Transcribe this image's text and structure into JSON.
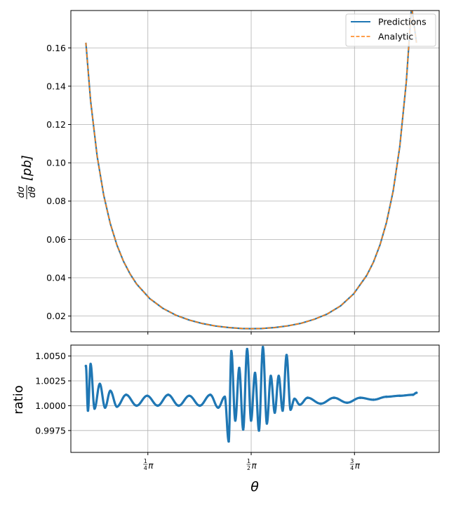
{
  "chart_data": [
    {
      "type": "line",
      "xlabel": "",
      "ylabel": "dσ/dθ [pb]",
      "ylabel_parts": {
        "num": "dσ",
        "den": "dθ",
        "unit": "[pb]"
      },
      "x_unit": "radians",
      "xlim": [
        0.2,
        3.0
      ],
      "ylim": [
        0.0118,
        0.1795
      ],
      "yticks": [
        0.02,
        0.04,
        0.06,
        0.08,
        0.1,
        0.12,
        0.14,
        0.16
      ],
      "ytick_labels": [
        "0.02",
        "0.04",
        "0.06",
        "0.08",
        "0.10",
        "0.12",
        "0.14",
        "0.16"
      ],
      "grid": true,
      "legend": {
        "position": "top-right"
      },
      "series": [
        {
          "name": "Predictions",
          "color": "#1f77b4",
          "style": "solid",
          "x": [
            0.3142,
            0.35,
            0.4,
            0.45,
            0.5,
            0.55,
            0.6,
            0.65,
            0.7,
            0.8,
            0.9,
            1.0,
            1.1,
            1.2,
            1.3,
            1.4,
            1.5,
            1.5708,
            1.65,
            1.75,
            1.85,
            1.95,
            2.05,
            2.15,
            2.25,
            2.35,
            2.45,
            2.5,
            2.55,
            2.6,
            2.65,
            2.7,
            2.75,
            2.79,
            2.8274
          ],
          "y": [
            0.1627,
            0.1324,
            0.1034,
            0.083,
            0.0682,
            0.0571,
            0.0486,
            0.042,
            0.0367,
            0.0291,
            0.024,
            0.0204,
            0.0179,
            0.0161,
            0.0148,
            0.014,
            0.0135,
            0.0134,
            0.0135,
            0.014,
            0.0149,
            0.0162,
            0.0183,
            0.0211,
            0.0253,
            0.0316,
            0.0413,
            0.0481,
            0.0571,
            0.069,
            0.0852,
            0.1082,
            0.1422,
            0.182,
            0.1627
          ]
        },
        {
          "name": "Analytic",
          "color": "#ff7f0e",
          "style": "dashed",
          "x": [
            0.3142,
            0.35,
            0.4,
            0.45,
            0.5,
            0.55,
            0.6,
            0.65,
            0.7,
            0.8,
            0.9,
            1.0,
            1.1,
            1.2,
            1.3,
            1.4,
            1.5,
            1.5708,
            1.65,
            1.75,
            1.85,
            1.95,
            2.05,
            2.15,
            2.25,
            2.35,
            2.45,
            2.5,
            2.55,
            2.6,
            2.65,
            2.7,
            2.75,
            2.79,
            2.8274
          ],
          "y": [
            0.1627,
            0.1324,
            0.1034,
            0.083,
            0.0682,
            0.0571,
            0.0486,
            0.042,
            0.0367,
            0.0291,
            0.024,
            0.0204,
            0.0179,
            0.0161,
            0.0148,
            0.014,
            0.0135,
            0.0134,
            0.0135,
            0.014,
            0.0149,
            0.0162,
            0.0183,
            0.0211,
            0.0253,
            0.0316,
            0.0413,
            0.0481,
            0.0571,
            0.069,
            0.0852,
            0.1082,
            0.1422,
            0.182,
            0.1627
          ]
        }
      ]
    },
    {
      "type": "scatter",
      "xlabel": "θ",
      "ylabel": "ratio",
      "x_unit": "radians",
      "xlim": [
        0.2,
        3.0
      ],
      "ylim": [
        0.9953,
        1.0061
      ],
      "xticks": [
        0.7854,
        1.5708,
        2.3562
      ],
      "xtick_labels": [
        {
          "num": "1",
          "den": "4",
          "sym": "π"
        },
        {
          "num": "1",
          "den": "2",
          "sym": "π"
        },
        {
          "num": "3",
          "den": "4",
          "sym": "π"
        }
      ],
      "yticks": [
        0.9975,
        1.0,
        1.0025,
        1.005
      ],
      "ytick_labels": [
        "0.9975",
        "1.0000",
        "1.0025",
        "1.0050"
      ],
      "grid": true,
      "color": "#1f77b4",
      "series": [
        {
          "x": [
            0.3142,
            0.33,
            0.35,
            0.38,
            0.42,
            0.46,
            0.5,
            0.55,
            0.62,
            0.7,
            0.78,
            0.86,
            0.94,
            1.02,
            1.1,
            1.18,
            1.26,
            1.32,
            1.37,
            1.4,
            1.42,
            1.45,
            1.48,
            1.51,
            1.54,
            1.57,
            1.6,
            1.63,
            1.66,
            1.69,
            1.72,
            1.75,
            1.78,
            1.81,
            1.84,
            1.87,
            1.9,
            1.94,
            2.0,
            2.1,
            2.2,
            2.3,
            2.4,
            2.5,
            2.6,
            2.7,
            2.8,
            2.8274
          ],
          "y": [
            1.004,
            0.9995,
            1.0042,
            0.9997,
            1.0022,
            0.9998,
            1.0015,
            0.9999,
            1.0011,
            1.0,
            1.001,
            1.0,
            1.0011,
            1.0,
            1.001,
            1.0,
            1.0011,
            0.9998,
            1.0009,
            0.9964,
            1.0055,
            0.9985,
            1.0038,
            0.9976,
            1.0057,
            0.9985,
            1.0033,
            0.9975,
            1.0059,
            0.9982,
            1.003,
            0.9993,
            1.003,
            0.9995,
            1.0051,
            0.9996,
            1.0007,
            1.0001,
            1.0008,
            1.0002,
            1.0008,
            1.0003,
            1.0008,
            1.0006,
            1.0009,
            1.001,
            1.0011,
            1.0013
          ]
        }
      ]
    }
  ]
}
